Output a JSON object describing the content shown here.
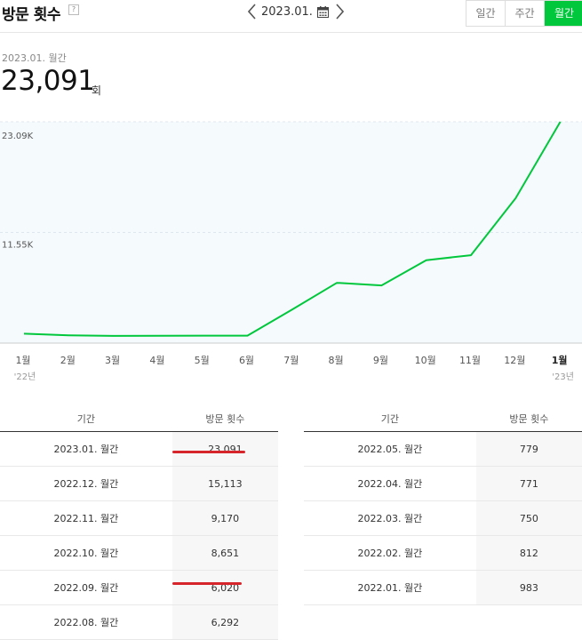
{
  "header": {
    "title": "방문 횟수",
    "help": "?",
    "date": "2023.01.",
    "periods": [
      "일간",
      "주간",
      "월간"
    ],
    "active_period": "월간"
  },
  "summary": {
    "label": "2023.01. 월간",
    "value": "23,091",
    "unit": "회"
  },
  "chart_data": {
    "type": "area",
    "x": [
      "1월",
      "2월",
      "3월",
      "4월",
      "5월",
      "6월",
      "7월",
      "8월",
      "9월",
      "10월",
      "11월",
      "12월",
      "1월"
    ],
    "year_labels": [
      "'22년",
      "'23년"
    ],
    "values": [
      983,
      812,
      750,
      771,
      779,
      779,
      3500,
      6292,
      6020,
      8651,
      9170,
      15113,
      23091
    ],
    "y_ticks": [
      "23.09K",
      "11.55K"
    ],
    "ylim": [
      0,
      23091
    ],
    "line_color": "#00c73c",
    "fill_color": "#f5fafd"
  },
  "table_left": {
    "headers": [
      "기간",
      "방문 횟수"
    ],
    "rows": [
      [
        "2023.01. 월간",
        "23,091"
      ],
      [
        "2022.12. 월간",
        "15,113"
      ],
      [
        "2022.11. 월간",
        "9,170"
      ],
      [
        "2022.10. 월간",
        "8,651"
      ],
      [
        "2022.09. 월간",
        "6,020"
      ],
      [
        "2022.08. 월간",
        "6,292"
      ]
    ]
  },
  "table_right": {
    "headers": [
      "기간",
      "방문 횟수"
    ],
    "rows": [
      [
        "2022.05. 월간",
        "779"
      ],
      [
        "2022.04. 월간",
        "771"
      ],
      [
        "2022.03. 월간",
        "750"
      ],
      [
        "2022.02. 월간",
        "812"
      ],
      [
        "2022.01. 월간",
        "983"
      ]
    ]
  },
  "colors": {
    "accent": "#00c73c",
    "underline": "#d7262b"
  }
}
